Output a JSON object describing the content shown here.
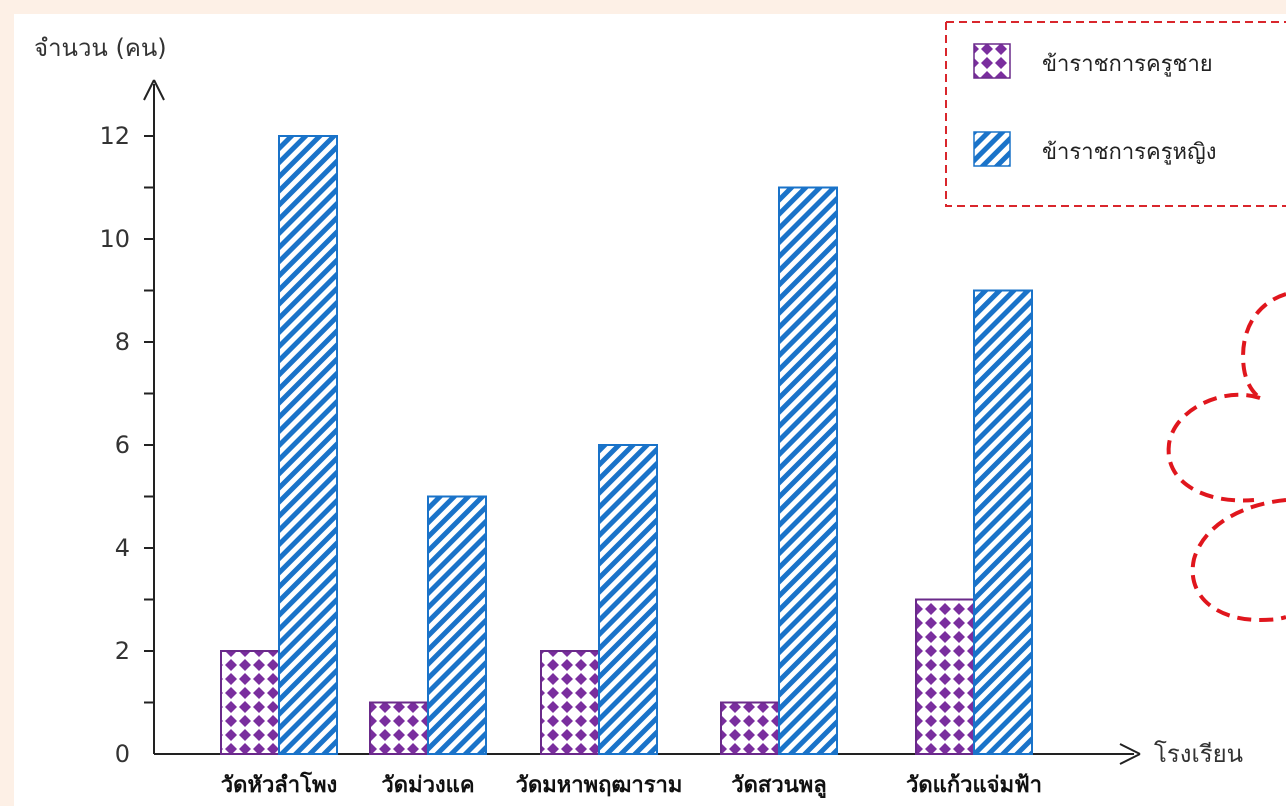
{
  "chart_data": {
    "type": "bar",
    "ylabel": "จำนวน (คน)",
    "xlabel": "โรงเรียน",
    "categories": [
      "วัดหัวลำโพง",
      "วัดม่วงแค",
      "วัดมหาพฤฒาราม",
      "วัดสวนพลู",
      "วัดแก้วแจ่มฟ้า"
    ],
    "series": [
      {
        "name": "ข้าราชการครูชาย",
        "values": [
          2,
          1,
          2,
          1,
          3
        ],
        "color": "#7a2e9e",
        "pattern": "diamonds"
      },
      {
        "name": "ข้าราชการครูหญิง",
        "values": [
          12,
          5,
          6,
          11,
          9
        ],
        "color": "#1a73c9",
        "pattern": "diagonal-stripes"
      }
    ],
    "ylim": [
      0,
      13
    ],
    "yticks": [
      0,
      2,
      4,
      6,
      8,
      10,
      12
    ],
    "grid": false,
    "legend_position": "top-right"
  },
  "colors": {
    "legend_border": "#d9262c",
    "cloud": "#e0161d",
    "axis": "#222222"
  }
}
